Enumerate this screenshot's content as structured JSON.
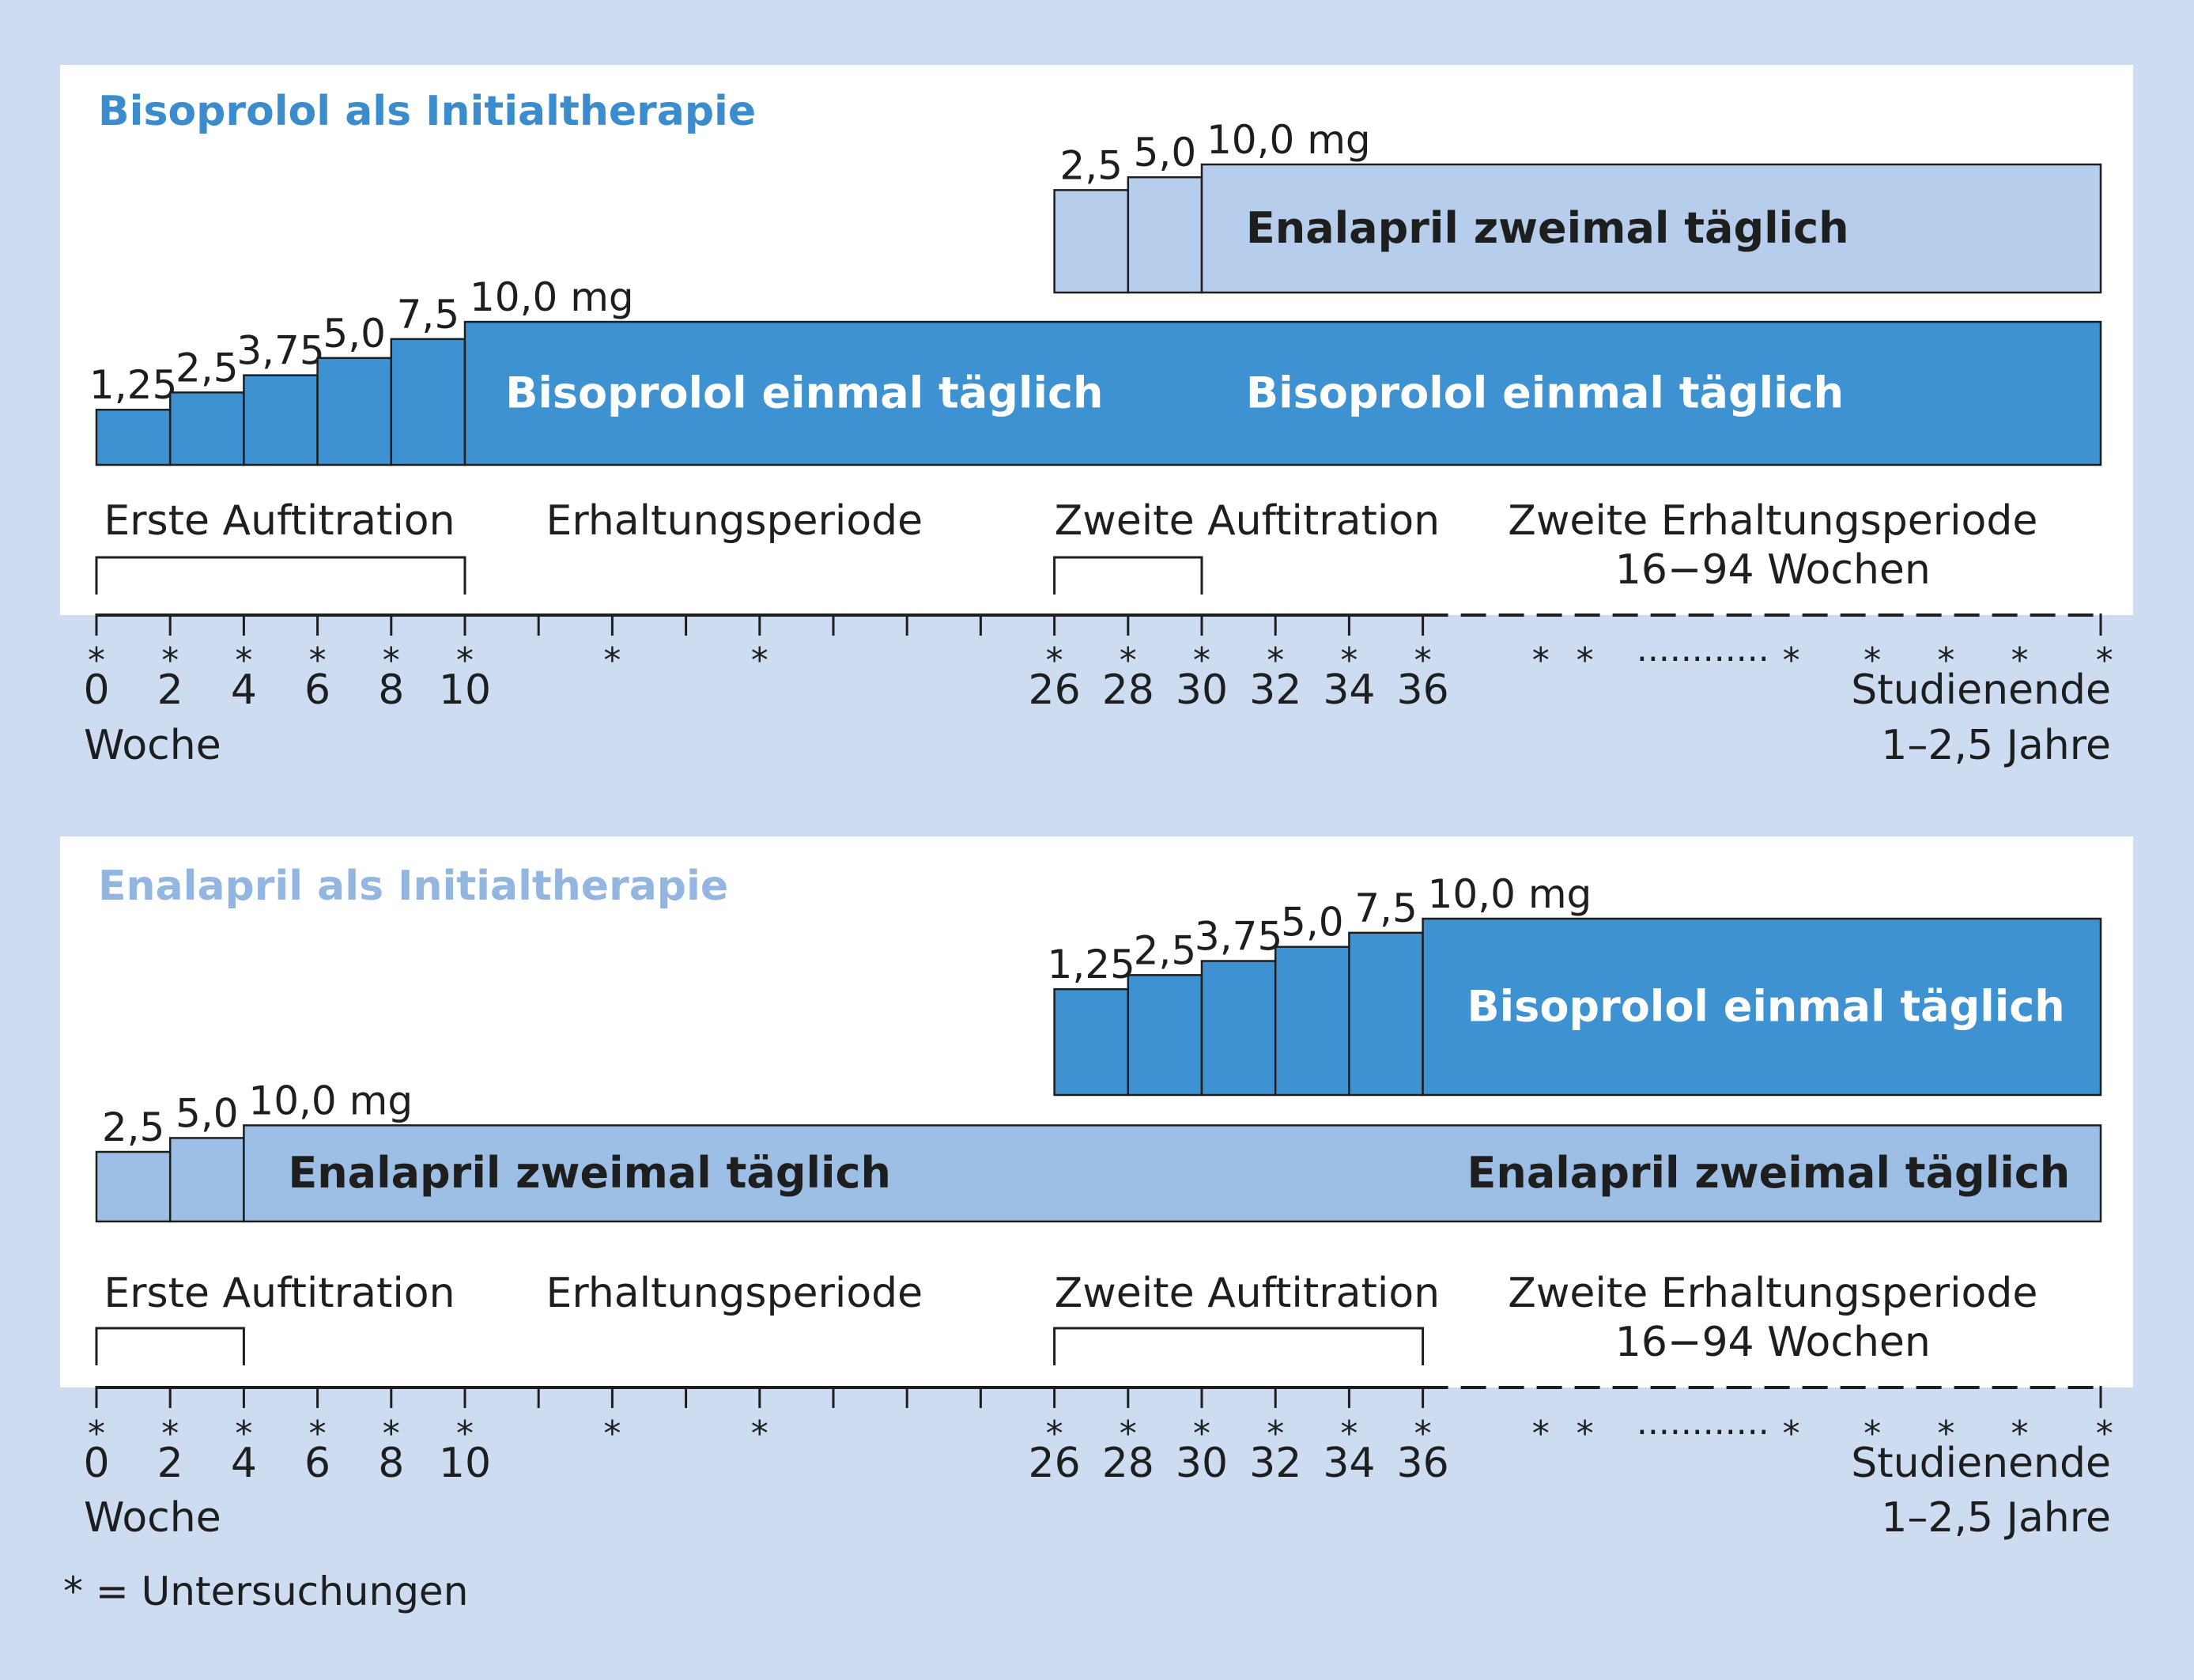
{
  "colors": {
    "background": "#cddcf1",
    "panel": "#ffffff",
    "bisoprolol_fill": "#3f92d2",
    "enalapril_fill_light": "#b6cdeb",
    "enalapril_fill": "#9dbfe5",
    "stroke": "#1e1e1e",
    "title_bisoprolol": "#3a8ccc",
    "title_enalapril": "#93b6e0",
    "text": "#1e1e1e",
    "text_on_dark": "#ffffff"
  },
  "week_ticks": [
    0,
    2,
    4,
    6,
    8,
    10,
    12,
    14,
    16,
    18,
    20,
    22,
    24,
    26,
    28,
    30,
    32,
    34,
    36
  ],
  "panels": [
    {
      "title": "Bisoprolol als Initialtherapie",
      "title_color": "title_bisoprolol",
      "lower_band": {
        "fill": "bisoprolol_fill",
        "label_color": "text_on_dark",
        "steps": [
          {
            "start": 0,
            "end": 2,
            "level": 0.32,
            "label": "1,25"
          },
          {
            "start": 2,
            "end": 4,
            "level": 0.42,
            "label": "2,5"
          },
          {
            "start": 4,
            "end": 6,
            "level": 0.52,
            "label": "3,75"
          },
          {
            "start": 6,
            "end": 8,
            "level": 0.62,
            "label": "5,0"
          },
          {
            "start": 8,
            "end": 10,
            "level": 0.73,
            "label": "7,5"
          },
          {
            "start": 10,
            "end": "end",
            "level": 0.83,
            "label": "10,0 mg"
          }
        ],
        "labels": [
          {
            "text": "Bisoprolol einmal täglich",
            "week": 11.1
          },
          {
            "text": "Bisoprolol einmal täglich",
            "week": 31.2
          }
        ]
      },
      "upper_band": {
        "fill": "enalapril_fill_light",
        "label_color": "text",
        "steps": [
          {
            "start": 26,
            "end": 28,
            "level": 0.8,
            "label": "2,5"
          },
          {
            "start": 28,
            "end": 30,
            "level": 0.9,
            "label": "5,0"
          },
          {
            "start": 30,
            "end": "end",
            "level": 1.0,
            "label": "10,0 mg"
          }
        ],
        "labels": [
          {
            "text": "Enalapril zweimal täglich",
            "week": 31.2
          }
        ]
      },
      "phases": [
        {
          "text": "Erste Auftitration",
          "week": 0.2,
          "anchor": "start"
        },
        {
          "text": "Erhaltungsperiode",
          "week": 12.2,
          "anchor": "start"
        },
        {
          "text": "Zweite Auftitration",
          "week": 26,
          "anchor": "start"
        },
        {
          "text": "Zweite Erhaltungsperiode",
          "week": 45.5,
          "anchor": "middle"
        },
        {
          "text": "16−94 Wochen",
          "week": 45.5,
          "anchor": "middle",
          "line": 2
        }
      ],
      "brackets": [
        {
          "start": 0,
          "end": 10
        },
        {
          "start": 26,
          "end": 30
        }
      ],
      "visit_weeks": [
        0,
        2,
        4,
        6,
        8,
        10,
        14,
        18,
        26,
        28,
        30,
        32,
        34,
        36,
        39.2,
        40.4,
        46,
        48.2,
        50.2,
        52.2,
        54.5
      ],
      "dotted_segment": "............",
      "week_labels": [
        "0",
        "2",
        "4",
        "6",
        "8",
        "10",
        "26",
        "28",
        "30",
        "32",
        "34",
        "36"
      ],
      "week_label_weeks": [
        0,
        2,
        4,
        6,
        8,
        10,
        26,
        28,
        30,
        32,
        34,
        36
      ],
      "axis_unit": "Woche",
      "study_end": "Studienende",
      "study_duration": "1–2,5 Jahre"
    },
    {
      "title": "Enalapril als Initialtherapie",
      "title_color": "title_enalapril",
      "lower_band": {
        "fill": "enalapril_fill",
        "label_color": "text",
        "steps": [
          {
            "start": 0,
            "end": 2,
            "level": 0.55,
            "label": "2,5"
          },
          {
            "start": 2,
            "end": 4,
            "level": 0.66,
            "label": "5,0"
          },
          {
            "start": 4,
            "end": "end",
            "level": 0.76,
            "label": "10,0 mg"
          }
        ],
        "labels": [
          {
            "text": "Enalapril zweimal täglich",
            "week": 5.2
          },
          {
            "text": "Enalapril zweimal täglich",
            "week": 37.2
          }
        ]
      },
      "upper_band": {
        "fill": "bisoprolol_fill",
        "label_color": "text_on_dark",
        "steps": [
          {
            "start": 26,
            "end": 28,
            "level": 0.6,
            "label": "1,25"
          },
          {
            "start": 28,
            "end": 30,
            "level": 0.68,
            "label": "2,5"
          },
          {
            "start": 30,
            "end": 32,
            "level": 0.76,
            "label": "3,75"
          },
          {
            "start": 32,
            "end": 34,
            "level": 0.84,
            "label": "5,0"
          },
          {
            "start": 34,
            "end": 36,
            "level": 0.92,
            "label": "7,5"
          },
          {
            "start": 36,
            "end": "end",
            "level": 1.0,
            "label": "10,0 mg"
          }
        ],
        "labels": [
          {
            "text": "Bisoprolol einmal täglich",
            "week": 37.2
          }
        ]
      },
      "phases": [
        {
          "text": "Erste Auftitration",
          "week": 0.2,
          "anchor": "start"
        },
        {
          "text": "Erhaltungsperiode",
          "week": 12.2,
          "anchor": "start"
        },
        {
          "text": "Zweite Auftitration",
          "week": 26,
          "anchor": "start"
        },
        {
          "text": "Zweite Erhaltungsperiode",
          "week": 45.5,
          "anchor": "middle"
        },
        {
          "text": "16−94 Wochen",
          "week": 45.5,
          "anchor": "middle",
          "line": 2
        }
      ],
      "brackets": [
        {
          "start": 0,
          "end": 4
        },
        {
          "start": 26,
          "end": 36
        }
      ],
      "visit_weeks": [
        0,
        2,
        4,
        6,
        8,
        10,
        14,
        18,
        26,
        28,
        30,
        32,
        34,
        36,
        39.2,
        40.4,
        46,
        48.2,
        50.2,
        52.2,
        54.5
      ],
      "dotted_segment": "............",
      "week_labels": [
        "0",
        "2",
        "4",
        "6",
        "8",
        "10",
        "26",
        "28",
        "30",
        "32",
        "34",
        "36"
      ],
      "week_label_weeks": [
        0,
        2,
        4,
        6,
        8,
        10,
        26,
        28,
        30,
        32,
        34,
        36
      ],
      "axis_unit": "Woche",
      "study_end": "Studienende",
      "study_duration": "1–2,5 Jahre"
    }
  ],
  "footnote": "* = Untersuchungen"
}
